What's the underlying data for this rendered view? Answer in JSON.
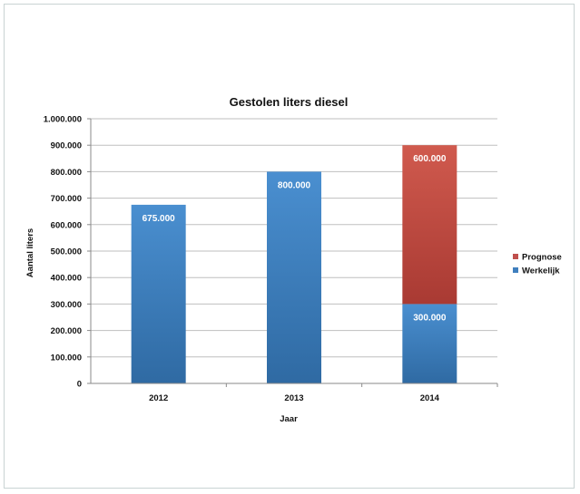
{
  "chart_data": {
    "type": "bar",
    "stacked": true,
    "title": "Gestolen liters diesel",
    "xlabel": "Jaar",
    "ylabel": "Aantal liters",
    "categories": [
      "2012",
      "2013",
      "2014"
    ],
    "ylim": [
      0,
      1000000
    ],
    "yticks": [
      0,
      100000,
      200000,
      300000,
      400000,
      500000,
      600000,
      700000,
      800000,
      900000,
      1000000
    ],
    "ytick_labels": [
      "0",
      "100.000",
      "200.000",
      "300.000",
      "400.000",
      "500.000",
      "600.000",
      "700.000",
      "800.000",
      "900.000",
      "1.000.000"
    ],
    "grid": true,
    "legend_position": "right",
    "series": [
      {
        "name": "Werkelijk",
        "color": "#3f7fbe",
        "values": [
          675000,
          800000,
          300000
        ],
        "labels": [
          "675.000",
          "800.000",
          "300.000"
        ]
      },
      {
        "name": "Prognose",
        "color": "#c0504d",
        "values": [
          0,
          0,
          600000
        ],
        "labels": [
          "",
          "",
          "600.000"
        ]
      }
    ],
    "legend_order": [
      "Prognose",
      "Werkelijk"
    ]
  }
}
